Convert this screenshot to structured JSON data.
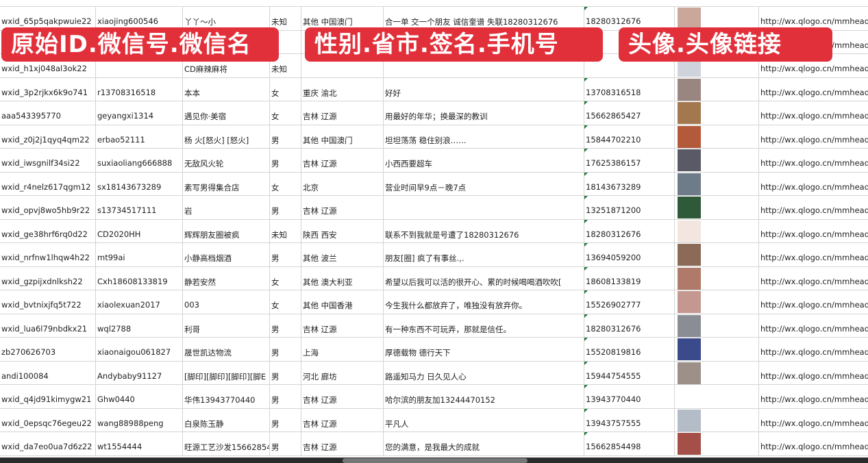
{
  "banners": [
    "原始ID.微信号.微信名",
    "性别.省市.签名.手机号",
    "头像.头像链接"
  ],
  "rows": [
    {
      "id": "wxid_65p5qakpwuie22",
      "wechat": "xiaojing600546",
      "name": "丫丫～小",
      "gender": "未知",
      "region": "其他 中国澳门",
      "signature": "合一单 交一个朋友 诚信奎谱 失联18280312676",
      "phone": "18280312676",
      "avatar_color": "#c9a79b",
      "link": "http://wx.qlogo.cn/mmhead"
    },
    {
      "id": "",
      "wechat": "",
      "name": "",
      "gender": "",
      "region": "",
      "signature": "",
      "phone": "",
      "avatar_color": "#8aa0c8",
      "link": "http://wx.qlogo.cn/mmhead"
    },
    {
      "id": "wxid_h1xj048al3ok22",
      "wechat": "",
      "name": "CD麻辣麻将",
      "gender": "未知",
      "region": "",
      "signature": "",
      "phone": "",
      "avatar_color": "#cfd3dc",
      "link": "http://wx.qlogo.cn/mmhead"
    },
    {
      "id": "wxid_3p2rjkx6k9o741",
      "wechat": "r13708316518",
      "name": "本本",
      "gender": "女",
      "region": "重庆 渝北",
      "signature": "好好",
      "phone": "13708316518",
      "avatar_color": "#9a8680",
      "link": "http://wx.qlogo.cn/mmhead"
    },
    {
      "id": "aaa543395770",
      "wechat": "geyangxi1314",
      "name": "遇见你·美宿",
      "gender": "女",
      "region": "吉林 辽源",
      "signature": "用最好的年华；换最深的教训",
      "phone": "15662865427",
      "avatar_color": "#a4784e",
      "link": "http://wx.qlogo.cn/mmhead"
    },
    {
      "id": "wxid_z0j2j1qyq4qm22",
      "wechat": "erbao52111",
      "name": "杨 火[怒火] [怒火]",
      "gender": "男",
      "region": "其他 中国澳门",
      "signature": "坦坦荡荡 稳住别浪……",
      "phone": "15844702210",
      "avatar_color": "#b25a3a",
      "link": "http://wx.qlogo.cn/mmhead"
    },
    {
      "id": "wxid_iwsgnilf34si22",
      "wechat": "suxiaoliang666888",
      "name": "无敌风火轮",
      "gender": "男",
      "region": "吉林 辽源",
      "signature": "小西西要超车",
      "phone": "17625386157",
      "avatar_color": "#5a5a66",
      "link": "http://wx.qlogo.cn/mmhead"
    },
    {
      "id": "wxid_r4nelz617qgm12",
      "wechat": "sx18143673289",
      "name": "素写男得集合店",
      "gender": "女",
      "region": "北京",
      "signature": "营业时间早9点－晚7点",
      "phone": "18143673289",
      "avatar_color": "#6e7c8a",
      "link": "http://wx.qlogo.cn/mmhead"
    },
    {
      "id": "wxid_opvj8wo5hb9r22",
      "wechat": "s13734517111",
      "name": "岩",
      "gender": "男",
      "region": "吉林 辽源",
      "signature": "",
      "phone": "13251871200",
      "avatar_color": "#2f5a3a",
      "link": "http://wx.qlogo.cn/mmhead"
    },
    {
      "id": "wxid_ge38hrf6rq0d22",
      "wechat": "CD2020HH",
      "name": "辉辉朋友圈被疯",
      "gender": "未知",
      "region": "陕西 西安",
      "signature": "联系不到我就是号遭了18280312676",
      "phone": "18280312676",
      "avatar_color": "#f3e6e0",
      "link": "http://wx.qlogo.cn/mmhead"
    },
    {
      "id": "wxid_nrfnw1lhqw4h22",
      "wechat": "mt99ai",
      "name": "小静高档烟酒",
      "gender": "男",
      "region": "其他 波兰",
      "signature": "朋友[圈] 疯了有事丝.,.",
      "phone": "13694059200",
      "avatar_color": "#8c6a58",
      "link": "http://wx.qlogo.cn/mmhead"
    },
    {
      "id": "wxid_gzpijxdnlksh22",
      "wechat": "Cxh18608133819",
      "name": "静若安然",
      "gender": "女",
      "region": "其他 澳大利亚",
      "signature": "希望以后我可以活的很开心、累的时候喝喝酒吹吹[",
      "phone": "18608133819",
      "avatar_color": "#b07a6a",
      "link": "http://wx.qlogo.cn/mmhead"
    },
    {
      "id": "wxid_bvtnixjfq5t722",
      "wechat": "xiaolexuan2017",
      "name": "003",
      "gender": "女",
      "region": "其他 中国香港",
      "signature": "今生我什么都放弃了，唯独没有放弃你。",
      "phone": "15526902777",
      "avatar_color": "#c49890",
      "link": "http://wx.qlogo.cn/mmhead"
    },
    {
      "id": "wxid_lua6l79nbdkx21",
      "wechat": "wql2788",
      "name": "利哥",
      "gender": "男",
      "region": "吉林 辽源",
      "signature": "有一种东西不可玩弄，那就是信任。",
      "phone": "18280312676",
      "avatar_color": "#8a8e94",
      "link": "http://wx.qlogo.cn/mmhead"
    },
    {
      "id": "zb270626703",
      "wechat": "xiaonaigou061827",
      "name": "晟世凯达物流",
      "gender": "男",
      "region": "上海",
      "signature": "厚德载物 德行天下",
      "phone": "15520819816",
      "avatar_color": "#3a4a8a",
      "link": "http://wx.qlogo.cn/mmhead"
    },
    {
      "id": "andi100084",
      "wechat": "Andybaby91127",
      "name": "[脚印][脚印][脚印][脚E",
      "gender": "男",
      "region": "河北 廊坊",
      "signature": "路遥知马力 日久见人心",
      "phone": "15944754555",
      "avatar_color": "#9c9088",
      "link": "http://wx.qlogo.cn/mmhead"
    },
    {
      "id": "wxid_q4jd91kimygw21",
      "wechat": "Ghw0440",
      "name": "华伟13943770440",
      "gender": "男",
      "region": "吉林 辽源",
      "signature": "哈尔滨的朋友加13244470152",
      "phone": "13943770440",
      "avatar_color": "#ffffff",
      "link": "http://wx.qlogo.cn/mmhead"
    },
    {
      "id": "wxid_0epsqc76egeu22",
      "wechat": "wang88988peng",
      "name": "白泉陈玉静",
      "gender": "男",
      "region": "吉林 辽源",
      "signature": "平凡人",
      "phone": "13943757555",
      "avatar_color": "#b4bcc8",
      "link": "http://wx.qlogo.cn/mmhead"
    },
    {
      "id": "wxid_da7eo0ua7d6z22",
      "wechat": "wt1554444",
      "name": "旺源工艺沙发15662854",
      "gender": "男",
      "region": "吉林 辽源",
      "signature": "您的满意，是我最大的成就",
      "phone": "15662854498",
      "avatar_color": "#a45048",
      "link": "http://wx.qlogo.cn/mmhead"
    }
  ]
}
